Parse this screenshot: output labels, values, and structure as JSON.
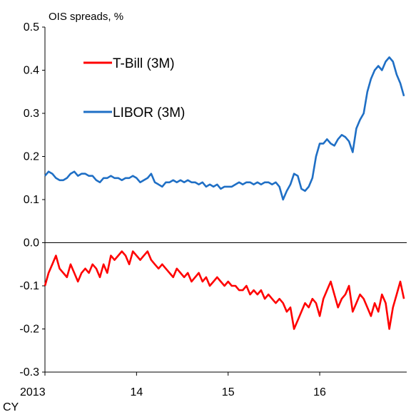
{
  "chart_data": {
    "type": "line",
    "title": "OIS spreads, %",
    "xlabel": "CY",
    "ylabel": "",
    "ylim": [
      -0.3,
      0.5
    ],
    "yticks": [
      "-0.3",
      "-0.2",
      "-0.1",
      "0.0",
      "0.1",
      "0.2",
      "0.3",
      "0.4",
      "0.5"
    ],
    "xlim": [
      2013.0,
      2016.95
    ],
    "xticks": [
      {
        "value": 2013,
        "label": "2013"
      },
      {
        "value": 2014,
        "label": "14"
      },
      {
        "value": 2015,
        "label": "15"
      },
      {
        "value": 2016,
        "label": "16"
      }
    ],
    "grid": false,
    "zero_line": true,
    "legend": {
      "placement": "top-left"
    },
    "colors": {
      "tbill": "#ff0000",
      "libor": "#1f6fc5"
    },
    "series": [
      {
        "name": "T-Bill (3M)",
        "key": "tbill",
        "x": [
          2013.0,
          2013.04,
          2013.08,
          2013.12,
          2013.16,
          2013.2,
          2013.24,
          2013.28,
          2013.32,
          2013.36,
          2013.4,
          2013.44,
          2013.48,
          2013.52,
          2013.56,
          2013.6,
          2013.64,
          2013.68,
          2013.72,
          2013.76,
          2013.8,
          2013.84,
          2013.88,
          2013.92,
          2013.96,
          2014.0,
          2014.04,
          2014.08,
          2014.12,
          2014.16,
          2014.2,
          2014.24,
          2014.28,
          2014.32,
          2014.36,
          2014.4,
          2014.44,
          2014.48,
          2014.52,
          2014.56,
          2014.6,
          2014.64,
          2014.68,
          2014.72,
          2014.76,
          2014.8,
          2014.84,
          2014.88,
          2014.92,
          2014.96,
          2015.0,
          2015.04,
          2015.08,
          2015.12,
          2015.16,
          2015.2,
          2015.24,
          2015.28,
          2015.32,
          2015.36,
          2015.4,
          2015.44,
          2015.48,
          2015.52,
          2015.56,
          2015.6,
          2015.64,
          2015.68,
          2015.72,
          2015.76,
          2015.8,
          2015.84,
          2015.88,
          2015.92,
          2015.96,
          2016.0,
          2016.04,
          2016.08,
          2016.12,
          2016.16,
          2016.2,
          2016.24,
          2016.28,
          2016.32,
          2016.36,
          2016.4,
          2016.44,
          2016.48,
          2016.52,
          2016.56,
          2016.6,
          2016.64,
          2016.68,
          2016.72,
          2016.76,
          2016.8,
          2016.84,
          2016.88,
          2016.92
        ],
        "values": [
          -0.1,
          -0.07,
          -0.05,
          -0.03,
          -0.06,
          -0.07,
          -0.08,
          -0.05,
          -0.07,
          -0.09,
          -0.07,
          -0.06,
          -0.07,
          -0.05,
          -0.06,
          -0.08,
          -0.05,
          -0.07,
          -0.03,
          -0.04,
          -0.03,
          -0.02,
          -0.03,
          -0.05,
          -0.02,
          -0.03,
          -0.04,
          -0.03,
          -0.02,
          -0.04,
          -0.05,
          -0.06,
          -0.05,
          -0.06,
          -0.07,
          -0.08,
          -0.06,
          -0.07,
          -0.08,
          -0.07,
          -0.09,
          -0.08,
          -0.07,
          -0.09,
          -0.08,
          -0.1,
          -0.09,
          -0.08,
          -0.09,
          -0.1,
          -0.09,
          -0.1,
          -0.1,
          -0.11,
          -0.11,
          -0.1,
          -0.12,
          -0.11,
          -0.12,
          -0.11,
          -0.13,
          -0.12,
          -0.13,
          -0.14,
          -0.13,
          -0.14,
          -0.16,
          -0.15,
          -0.2,
          -0.18,
          -0.16,
          -0.14,
          -0.15,
          -0.13,
          -0.14,
          -0.17,
          -0.13,
          -0.11,
          -0.09,
          -0.12,
          -0.15,
          -0.13,
          -0.12,
          -0.1,
          -0.16,
          -0.14,
          -0.12,
          -0.13,
          -0.15,
          -0.17,
          -0.14,
          -0.16,
          -0.12,
          -0.14,
          -0.2,
          -0.15,
          -0.12,
          -0.09,
          -0.13
        ]
      },
      {
        "name": "LIBOR (3M)",
        "key": "libor",
        "x": [
          2013.0,
          2013.04,
          2013.08,
          2013.12,
          2013.16,
          2013.2,
          2013.24,
          2013.28,
          2013.32,
          2013.36,
          2013.4,
          2013.44,
          2013.48,
          2013.52,
          2013.56,
          2013.6,
          2013.64,
          2013.68,
          2013.72,
          2013.76,
          2013.8,
          2013.84,
          2013.88,
          2013.92,
          2013.96,
          2014.0,
          2014.04,
          2014.08,
          2014.12,
          2014.16,
          2014.2,
          2014.24,
          2014.28,
          2014.32,
          2014.36,
          2014.4,
          2014.44,
          2014.48,
          2014.52,
          2014.56,
          2014.6,
          2014.64,
          2014.68,
          2014.72,
          2014.76,
          2014.8,
          2014.84,
          2014.88,
          2014.92,
          2014.96,
          2015.0,
          2015.04,
          2015.08,
          2015.12,
          2015.16,
          2015.2,
          2015.24,
          2015.28,
          2015.32,
          2015.36,
          2015.4,
          2015.44,
          2015.48,
          2015.52,
          2015.56,
          2015.6,
          2015.64,
          2015.68,
          2015.72,
          2015.76,
          2015.8,
          2015.84,
          2015.88,
          2015.92,
          2015.96,
          2016.0,
          2016.04,
          2016.08,
          2016.12,
          2016.16,
          2016.2,
          2016.24,
          2016.28,
          2016.32,
          2016.36,
          2016.4,
          2016.44,
          2016.48,
          2016.52,
          2016.56,
          2016.6,
          2016.64,
          2016.68,
          2016.72,
          2016.76,
          2016.8,
          2016.84,
          2016.88,
          2016.92
        ],
        "values": [
          0.155,
          0.165,
          0.16,
          0.15,
          0.145,
          0.145,
          0.15,
          0.16,
          0.165,
          0.155,
          0.16,
          0.16,
          0.155,
          0.155,
          0.145,
          0.14,
          0.15,
          0.15,
          0.155,
          0.15,
          0.15,
          0.145,
          0.15,
          0.15,
          0.155,
          0.15,
          0.14,
          0.145,
          0.15,
          0.16,
          0.14,
          0.135,
          0.13,
          0.14,
          0.14,
          0.145,
          0.14,
          0.145,
          0.14,
          0.145,
          0.14,
          0.14,
          0.135,
          0.14,
          0.13,
          0.135,
          0.13,
          0.135,
          0.125,
          0.13,
          0.13,
          0.13,
          0.135,
          0.14,
          0.135,
          0.14,
          0.14,
          0.135,
          0.14,
          0.135,
          0.14,
          0.14,
          0.135,
          0.14,
          0.13,
          0.1,
          0.12,
          0.135,
          0.16,
          0.155,
          0.125,
          0.12,
          0.13,
          0.15,
          0.2,
          0.23,
          0.23,
          0.24,
          0.23,
          0.225,
          0.24,
          0.25,
          0.245,
          0.235,
          0.21,
          0.265,
          0.285,
          0.3,
          0.35,
          0.38,
          0.4,
          0.41,
          0.4,
          0.42,
          0.43,
          0.42,
          0.39,
          0.37,
          0.34
        ]
      }
    ]
  }
}
